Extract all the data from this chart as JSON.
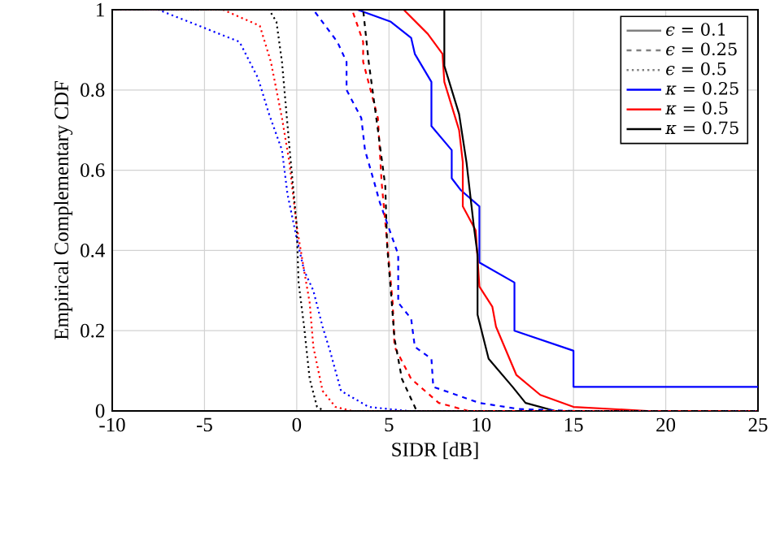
{
  "chart_data": {
    "type": "line",
    "xlabel": "SIDR [dB]",
    "ylabel": "Empirical Complementary CDF",
    "xlim": [
      -10,
      25
    ],
    "ylim": [
      0,
      1
    ],
    "xticks": [
      -10,
      -5,
      0,
      5,
      10,
      15,
      20,
      25
    ],
    "yticks": [
      0,
      {
        "value": 0.2,
        "label": "0.2"
      },
      {
        "value": 0.4,
        "label": "0.4"
      },
      {
        "value": 0.6,
        "label": "0.6"
      },
      {
        "value": 0.8,
        "label": "0.8"
      },
      1
    ],
    "grid": true,
    "annotations": [
      "*ϵ* = 0.1",
      "*ϵ* = 0.25",
      "*ϵ* = 0.5",
      "*κ* = 0.25",
      "*κ* = 0.5",
      "*κ* = 0.75"
    ],
    "series": [
      {
        "color": "#0000ff",
        "line_style": "solid",
        "x": [
          -10,
          3.3,
          5.1,
          6.2,
          6.4,
          7.3,
          7.3,
          8.4,
          8.4,
          8.9,
          9.9,
          9.9,
          11.8,
          11.8,
          15,
          15,
          25
        ],
        "values": [
          1,
          1,
          0.97,
          0.93,
          0.89,
          0.82,
          0.71,
          0.65,
          0.58,
          0.55,
          0.51,
          0.37,
          0.32,
          0.2,
          0.15,
          0.06,
          0.06
        ]
      },
      {
        "color": "#ff0000",
        "line_style": "solid",
        "x": [
          -10,
          5.8,
          7.1,
          7.9,
          8.0,
          8.8,
          9.0,
          9.0,
          9.7,
          9.9,
          10.6,
          10.8,
          11.9,
          13.2,
          15,
          19,
          25
        ],
        "values": [
          1,
          1,
          0.94,
          0.89,
          0.82,
          0.7,
          0.62,
          0.51,
          0.45,
          0.31,
          0.26,
          0.21,
          0.09,
          0.04,
          0.01,
          0,
          0
        ]
      },
      {
        "color": "#000000",
        "line_style": "solid",
        "x": [
          -10,
          8.0,
          8.0,
          8.8,
          9.2,
          9.6,
          9.8,
          9.8,
          10.4,
          11.7,
          12.4,
          14,
          25
        ],
        "values": [
          1,
          1,
          0.86,
          0.74,
          0.62,
          0.46,
          0.39,
          0.24,
          0.13,
          0.06,
          0.02,
          0,
          0
        ]
      },
      {
        "color": "#0000ff",
        "line_style": "dashed",
        "x": [
          -10,
          0.9,
          2.2,
          2.7,
          2.7,
          3.5,
          3.7,
          4.2,
          4.5,
          5.5,
          5.5,
          6.2,
          6.4,
          7.3,
          7.4,
          9.9,
          12,
          15,
          25
        ],
        "values": [
          1,
          1,
          0.92,
          0.87,
          0.8,
          0.73,
          0.65,
          0.57,
          0.52,
          0.39,
          0.27,
          0.23,
          0.16,
          0.13,
          0.06,
          0.02,
          0.005,
          0,
          0
        ]
      },
      {
        "color": "#ff0000",
        "line_style": "dashed",
        "x": [
          -10,
          3.0,
          3.6,
          3.6,
          4.4,
          4.6,
          4.9,
          5.2,
          5.3,
          6.2,
          7.7,
          9.3,
          25
        ],
        "values": [
          1,
          1,
          0.92,
          0.87,
          0.73,
          0.57,
          0.42,
          0.27,
          0.16,
          0.08,
          0.02,
          0,
          0
        ]
      },
      {
        "color": "#000000",
        "line_style": "dashed",
        "x": [
          -10,
          3.6,
          3.9,
          4.4,
          4.8,
          4.9,
          5.1,
          5.3,
          5.7,
          6.2,
          6.5,
          25
        ],
        "values": [
          1,
          1,
          0.87,
          0.7,
          0.56,
          0.41,
          0.3,
          0.18,
          0.08,
          0.03,
          0,
          0
        ]
      },
      {
        "color": "#0000ff",
        "line_style": "dotted",
        "x": [
          -10,
          -7.5,
          -3.1,
          -2.1,
          -1.5,
          -0.8,
          -0.5,
          0,
          0.4,
          0.9,
          1.4,
          1.8,
          2.4,
          3.9,
          6,
          25
        ],
        "values": [
          1,
          1,
          0.92,
          0.83,
          0.74,
          0.65,
          0.54,
          0.43,
          0.35,
          0.3,
          0.21,
          0.15,
          0.05,
          0.01,
          0,
          0
        ]
      },
      {
        "color": "#ff0000",
        "line_style": "dotted",
        "x": [
          -10,
          -4,
          -2.0,
          -1.4,
          -0.8,
          -0.4,
          0,
          0.4,
          0.7,
          0.9,
          1.4,
          2.1,
          3,
          25
        ],
        "values": [
          1,
          1,
          0.96,
          0.87,
          0.73,
          0.62,
          0.46,
          0.35,
          0.27,
          0.16,
          0.05,
          0.01,
          0,
          0
        ]
      },
      {
        "color": "#000000",
        "line_style": "dotted",
        "x": [
          -10,
          -1.5,
          -1.1,
          -0.8,
          -0.4,
          0,
          0.1,
          0.4,
          0.7,
          1.1,
          1.5,
          25
        ],
        "values": [
          1,
          1,
          0.97,
          0.87,
          0.66,
          0.46,
          0.32,
          0.21,
          0.08,
          0.01,
          0,
          0
        ]
      }
    ]
  }
}
